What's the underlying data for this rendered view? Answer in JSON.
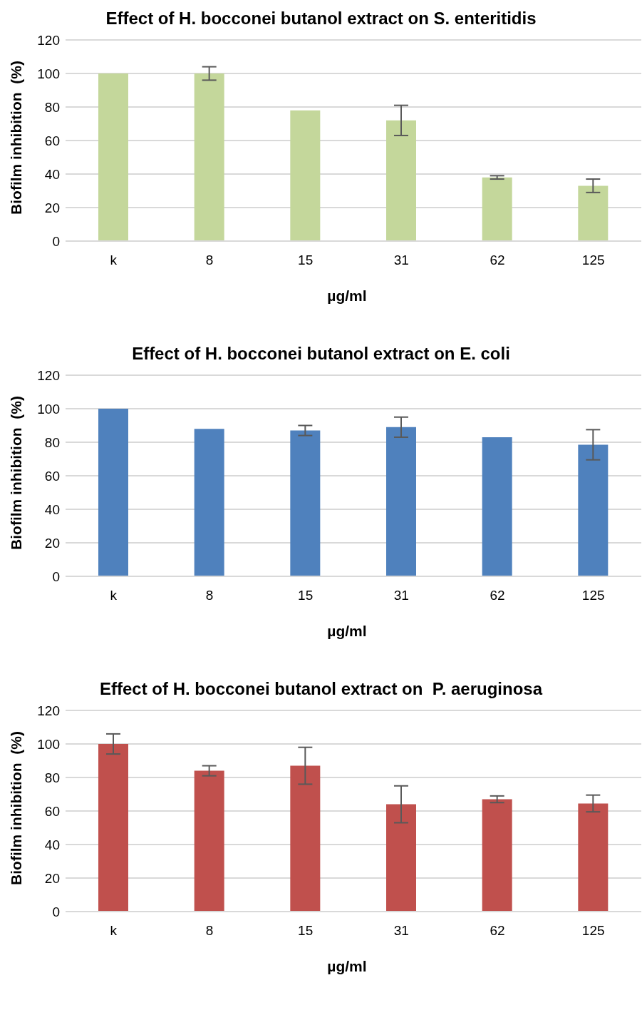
{
  "chart_data": [
    {
      "type": "bar",
      "title": "Effect of H. bocconei butanol extract on S. enteritidis",
      "xlabel": "µg/ml",
      "ylabel": "Biofilm inhibition  (%)",
      "categories": [
        "k",
        "8",
        "15",
        "31",
        "62",
        "125"
      ],
      "values": [
        100,
        100,
        78,
        72,
        38,
        33
      ],
      "errors": [
        0,
        4,
        0,
        9,
        1,
        4
      ],
      "color": "#c4d79b",
      "ylim": [
        0,
        120
      ],
      "yticks": [
        0,
        20,
        40,
        60,
        80,
        100,
        120
      ],
      "grid": "y",
      "legend": false
    },
    {
      "type": "bar",
      "title": "Effect of H. bocconei butanol extract on E. coli",
      "xlabel": "µg/ml",
      "ylabel": "Biofilm inhibition  (%)",
      "categories": [
        "k",
        "8",
        "15",
        "31",
        "62",
        "125"
      ],
      "values": [
        100,
        88,
        87,
        89,
        83,
        78.5
      ],
      "errors": [
        0,
        0,
        3,
        6,
        0,
        9
      ],
      "color": "#4f81bd",
      "ylim": [
        0,
        120
      ],
      "yticks": [
        0,
        20,
        40,
        60,
        80,
        100,
        120
      ],
      "grid": "y",
      "legend": false
    },
    {
      "type": "bar",
      "title": "Effect of H. bocconei butanol extract on  P. aeruginosa",
      "xlabel": "µg/ml",
      "ylabel": "Biofilm inhibition  (%)",
      "categories": [
        "k",
        "8",
        "15",
        "31",
        "62",
        "125"
      ],
      "values": [
        100,
        84,
        87,
        64,
        67,
        64.5
      ],
      "errors": [
        6,
        3,
        11,
        11,
        2,
        5
      ],
      "color": "#c0504d",
      "ylim": [
        0,
        120
      ],
      "yticks": [
        0,
        20,
        40,
        60,
        80,
        100,
        120
      ],
      "grid": "y",
      "legend": false
    }
  ]
}
